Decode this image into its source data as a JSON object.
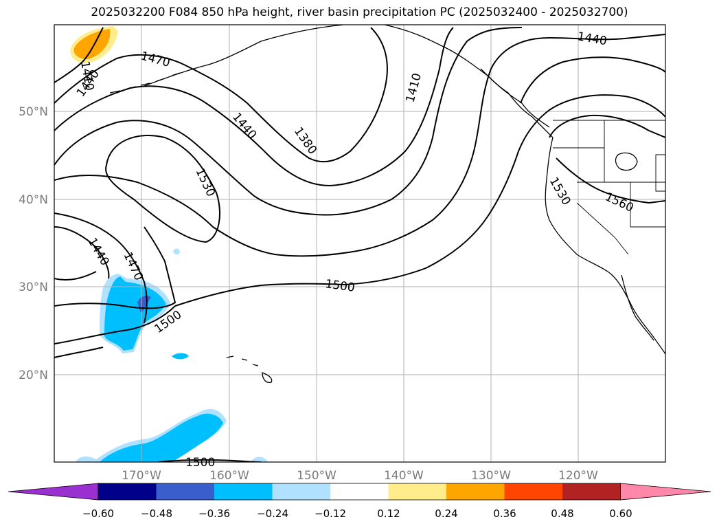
{
  "title": "2025032200 F084 850 hPa height, river basin precipitation PC (2025032400 - 2025032700)",
  "latitude_labels": [
    "50°N",
    "40°N",
    "30°N",
    "20°N"
  ],
  "longitude_labels": [
    "170°W",
    "160°W",
    "150°W",
    "140°W",
    "130°W",
    "120°W"
  ],
  "contour_labels": [
    "1410",
    "1440",
    "1470",
    "1410",
    "1440",
    "1380",
    "1440",
    "1530",
    "1530",
    "1560",
    "1440",
    "1470",
    "1500",
    "1500",
    "1500"
  ],
  "colorbar": {
    "tick_labels": [
      "−0.60",
      "−0.48",
      "−0.36",
      "−0.24",
      "−0.12",
      "0.12",
      "0.24",
      "0.36",
      "0.48",
      "0.60"
    ],
    "colors": {
      "under": "#9b30d0",
      "bins": [
        "#00008b",
        "#3a5fcd",
        "#00bfff",
        "#b0e2ff",
        "#ffffff",
        "#ffec8b",
        "#ffa500",
        "#ff4500",
        "#b22222",
        "#ff88aa"
      ],
      "over": "#ff88aa"
    }
  },
  "colors": {
    "shade_strong_negative": "#00bfff",
    "shade_weak_negative": "#b0e2ff",
    "shade_very_strong_negative": "#3a5fcd",
    "shade_positive": "#ffa500",
    "shade_weak_positive": "#ffec8b",
    "contour": "#000000",
    "grid": "#b0b0b0"
  }
}
